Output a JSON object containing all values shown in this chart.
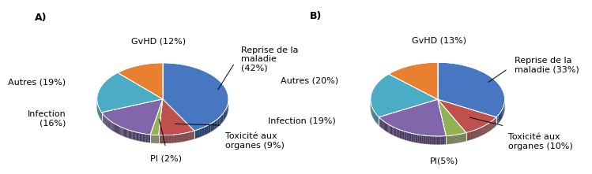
{
  "chart_A": {
    "labels": [
      "Reprise de la\nmaladie\n(42%)",
      "Toxicité aux\norganes (9%)",
      "PI (2%)",
      "Infection\n(16%)",
      "Autres (19%)",
      "GvHD (12%)"
    ],
    "values": [
      42,
      9,
      2,
      16,
      19,
      12
    ],
    "colors": [
      "#4777C0",
      "#C0504D",
      "#92B153",
      "#8266AC",
      "#4BACC6",
      "#E88030"
    ],
    "startangle": 90
  },
  "chart_B": {
    "labels": [
      "Reprise de la\nmaladie (33%)",
      "Toxicité aux\norganes (10%)",
      "PI(5%)",
      "Infection (19%)",
      "Autres (20%)",
      "GvHD (13%)"
    ],
    "values": [
      33,
      10,
      5,
      19,
      20,
      13
    ],
    "colors": [
      "#4777C0",
      "#C0504D",
      "#92B153",
      "#8266AC",
      "#4BACC6",
      "#E88030"
    ],
    "startangle": 90
  },
  "label_A": "A)",
  "label_B": "B)",
  "background_color": "#FFFFFF",
  "label_fontsize": 8,
  "annot_fontsize": 7.5
}
